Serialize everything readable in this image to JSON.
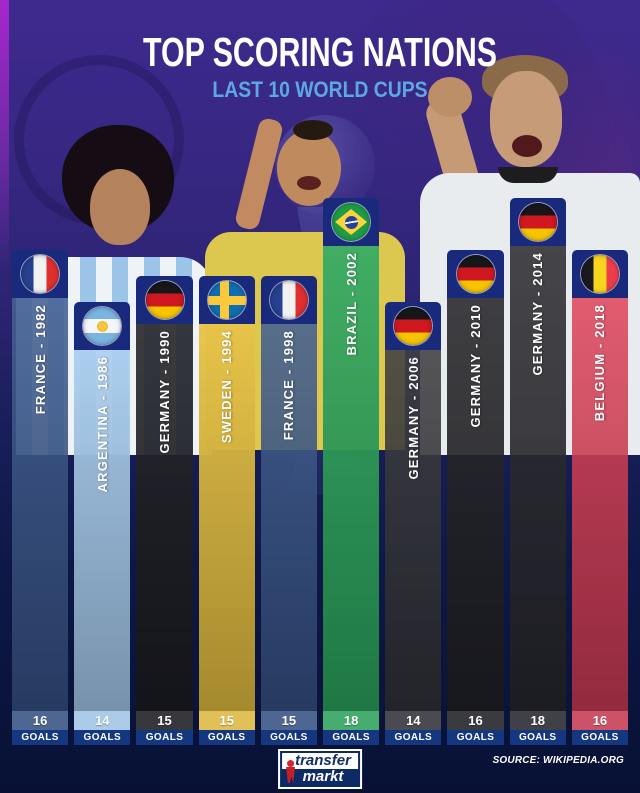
{
  "header": {
    "title": "TOP SCORING NATIONS",
    "subtitle": "LAST 10 WORLD CUPS"
  },
  "footer": {
    "logo": {
      "line1": "transfer",
      "line2": "markt"
    },
    "source": "SOURCE: WIKIPEDIA.ORG"
  },
  "colors": {
    "tab": "#19297c",
    "goals_band": "#153780",
    "subtitle": "#5ca9e2",
    "title": "#ffffff",
    "background_top": "#3e2a8e",
    "background_bottom": "#081134"
  },
  "chart_data": {
    "type": "bar",
    "title": "TOP SCORING NATIONS",
    "subtitle": "LAST 10 WORLD CUPS",
    "unit": "GOALS",
    "ylim": [
      0,
      18
    ],
    "legend": "none",
    "grid": false,
    "bars": [
      {
        "label": "FRANCE - 1982",
        "nation": "France",
        "year": 1982,
        "goals": 16,
        "flag": "france",
        "color": "rgba(58,88,140,0.88)"
      },
      {
        "label": "ARGENTINA - 1986",
        "nation": "Argentina",
        "year": 1986,
        "goals": 14,
        "flag": "argentina",
        "color": "rgba(168,204,238,0.95)"
      },
      {
        "label": "GERMANY - 1990",
        "nation": "Germany",
        "year": 1990,
        "goals": 15,
        "flag": "germany",
        "color": "rgba(28,28,31,0.90)"
      },
      {
        "label": "SWEDEN - 1994",
        "nation": "Sweden",
        "year": 1994,
        "goals": 15,
        "flag": "sweden",
        "color": "rgba(230,192,62,0.96)"
      },
      {
        "label": "FRANCE - 1998",
        "nation": "France",
        "year": 1998,
        "goals": 15,
        "flag": "france",
        "color": "rgba(58,88,140,0.88)"
      },
      {
        "label": "BRAZIL - 2002",
        "nation": "Brazil",
        "year": 2002,
        "goals": 18,
        "flag": "brazil",
        "color": "rgba(44,168,92,0.95)"
      },
      {
        "label": "GERMANY - 2006",
        "nation": "Germany",
        "year": 2006,
        "goals": 14,
        "flag": "germany",
        "color": "rgba(52,52,56,0.88)"
      },
      {
        "label": "GERMANY - 2010",
        "nation": "Germany",
        "year": 2010,
        "goals": 16,
        "flag": "germany",
        "color": "rgba(32,32,35,0.90)"
      },
      {
        "label": "GERMANY - 2014",
        "nation": "Germany",
        "year": 2014,
        "goals": 18,
        "flag": "germany",
        "color": "rgba(40,40,44,0.90)"
      },
      {
        "label": "BELGIUM - 2018",
        "nation": "Belgium",
        "year": 2018,
        "goals": 16,
        "flag": "belgium",
        "color": "rgba(222,62,85,0.88)"
      }
    ]
  }
}
